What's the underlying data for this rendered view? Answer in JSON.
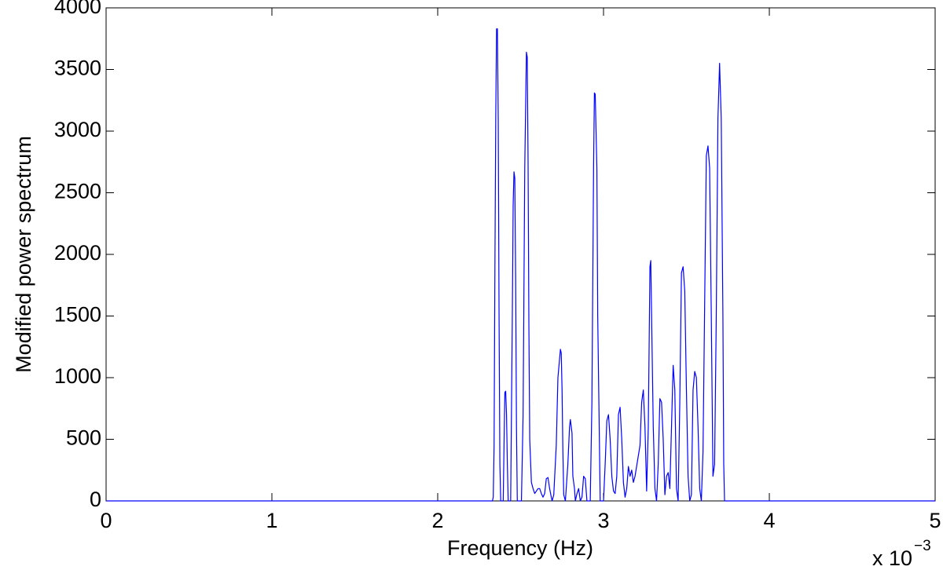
{
  "chart_data": {
    "type": "line",
    "x_label": "Frequency (Hz)",
    "y_label": "Modified power spectrum",
    "x_multiplier": {
      "base": "x 10",
      "exponent": "−3"
    },
    "color": "#0000ff",
    "xlim": [
      0,
      5
    ],
    "xticks": [
      0,
      1,
      2,
      3,
      4,
      5
    ],
    "ylim": [
      0,
      4000
    ],
    "yticks": [
      0,
      500,
      1000,
      1500,
      2000,
      2500,
      3000,
      3500,
      4000
    ],
    "grid": false,
    "x": [
      0,
      2.33,
      2.335,
      2.34,
      2.345,
      2.35,
      2.355,
      2.36,
      2.365,
      2.37,
      2.375,
      2.38,
      2.395,
      2.4,
      2.405,
      2.41,
      2.415,
      2.42,
      2.425,
      2.44,
      2.45,
      2.455,
      2.46,
      2.465,
      2.47,
      2.475,
      2.48,
      2.505,
      2.515,
      2.525,
      2.535,
      2.54,
      2.545,
      2.55,
      2.555,
      2.565,
      2.575,
      2.585,
      2.595,
      2.605,
      2.615,
      2.625,
      2.635,
      2.645,
      2.655,
      2.665,
      2.675,
      2.685,
      2.69,
      2.7,
      2.715,
      2.725,
      2.74,
      2.745,
      2.75,
      2.755,
      2.76,
      2.77,
      2.785,
      2.795,
      2.8,
      2.81,
      2.815,
      2.825,
      2.83,
      2.84,
      2.85,
      2.86,
      2.87,
      2.88,
      2.89,
      2.9,
      2.92,
      2.93,
      2.94,
      2.945,
      2.95,
      2.96,
      2.965,
      2.975,
      2.98,
      3.0,
      3.01,
      3.02,
      3.03,
      3.04,
      3.05,
      3.06,
      3.07,
      3.08,
      3.09,
      3.1,
      3.11,
      3.12,
      3.13,
      3.14,
      3.15,
      3.16,
      3.17,
      3.18,
      3.19,
      3.22,
      3.23,
      3.24,
      3.25,
      3.26,
      3.27,
      3.28,
      3.285,
      3.29,
      3.3,
      3.31,
      3.32,
      3.33,
      3.34,
      3.35,
      3.36,
      3.37,
      3.38,
      3.39,
      3.4,
      3.41,
      3.42,
      3.43,
      3.44,
      3.45,
      3.46,
      3.47,
      3.48,
      3.49,
      3.5,
      3.51,
      3.52,
      3.53,
      3.54,
      3.55,
      3.56,
      3.57,
      3.58,
      3.59,
      3.6,
      3.61,
      3.62,
      3.63,
      3.64,
      3.65,
      3.66,
      3.67,
      3.68,
      3.69,
      3.7,
      3.71,
      3.72,
      3.725,
      3.73,
      5
    ],
    "values": [
      0,
      0,
      30,
      450,
      1900,
      3100,
      3830,
      3830,
      3100,
      1500,
      300,
      0,
      0,
      450,
      880,
      890,
      700,
      300,
      0,
      0,
      1500,
      2400,
      2670,
      2620,
      1800,
      600,
      0,
      0,
      700,
      2700,
      3640,
      3600,
      2750,
      1400,
      500,
      150,
      100,
      60,
      80,
      100,
      100,
      60,
      30,
      60,
      180,
      190,
      100,
      30,
      0,
      50,
      450,
      1000,
      1230,
      1200,
      900,
      400,
      50,
      0,
      300,
      600,
      660,
      550,
      200,
      100,
      0,
      60,
      100,
      0,
      30,
      200,
      180,
      0,
      0,
      800,
      2700,
      3310,
      3300,
      2700,
      1500,
      500,
      0,
      0,
      300,
      650,
      700,
      500,
      200,
      80,
      60,
      200,
      700,
      760,
      500,
      150,
      30,
      100,
      280,
      200,
      250,
      150,
      200,
      450,
      800,
      900,
      600,
      80,
      600,
      1900,
      1950,
      1500,
      600,
      100,
      0,
      300,
      830,
      800,
      500,
      50,
      200,
      230,
      100,
      600,
      1100,
      900,
      100,
      0,
      800,
      1850,
      1900,
      1700,
      900,
      200,
      0,
      50,
      900,
      1050,
      1000,
      600,
      100,
      0,
      400,
      1600,
      2800,
      2880,
      2700,
      1500,
      200,
      300,
      1500,
      3100,
      3550,
      3100,
      1500,
      300,
      0,
      0
    ]
  }
}
